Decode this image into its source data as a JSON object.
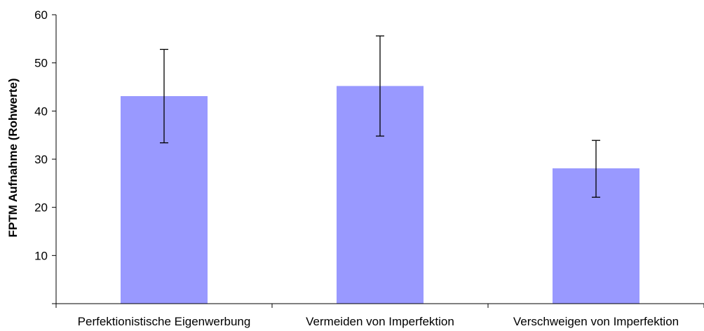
{
  "chart_data": {
    "type": "bar",
    "title": "",
    "xlabel": "",
    "ylabel": "FPTM Aufnahme (Rohwerte)",
    "categories": [
      "Perfektionistische Eigenwerbung",
      "Vermeiden von Imperfektion",
      "Verschweigen von Imperfektion"
    ],
    "values": [
      43.1,
      45.2,
      28.1
    ],
    "error_bars": [
      {
        "low": 33.4,
        "high": 52.8
      },
      {
        "low": 34.8,
        "high": 55.6
      },
      {
        "low": 22.1,
        "high": 33.9
      }
    ],
    "ylim": [
      0,
      60
    ],
    "yticks": [
      10,
      20,
      30,
      40,
      50,
      60
    ],
    "grid": false,
    "legend": "none",
    "bar_color": "#9999ff",
    "error_bar_color": "#000000",
    "axis_color": "#000000"
  }
}
